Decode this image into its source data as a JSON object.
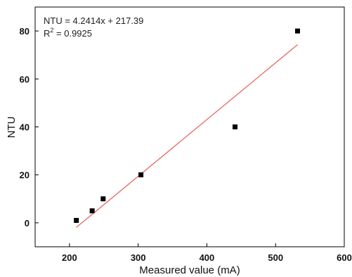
{
  "chart_data": {
    "type": "scatter",
    "xlabel": "Measured value (mA)",
    "ylabel": "NTU",
    "xlim": [
      150,
      600
    ],
    "ylim": [
      -10,
      90
    ],
    "x_ticks": [
      200,
      300,
      400,
      500,
      600
    ],
    "y_ticks": [
      0,
      20,
      40,
      60,
      80
    ],
    "grid": false,
    "series": [
      {
        "x": [
          210,
          233,
          249,
          304,
          441,
          532
        ],
        "y": [
          1,
          5,
          10,
          20,
          40,
          80
        ],
        "marker": "square",
        "color": "#000000"
      }
    ],
    "fit_line": {
      "x": [
        210,
        532
      ],
      "y": [
        -1.9,
        74.3
      ],
      "color": "#e8685f"
    },
    "annotations": {
      "equation": "NTU = 4.2414x + 217.39",
      "r2_prefix": "R",
      "r2_superscript": "2",
      "r2_suffix": " = 0.9925"
    }
  }
}
